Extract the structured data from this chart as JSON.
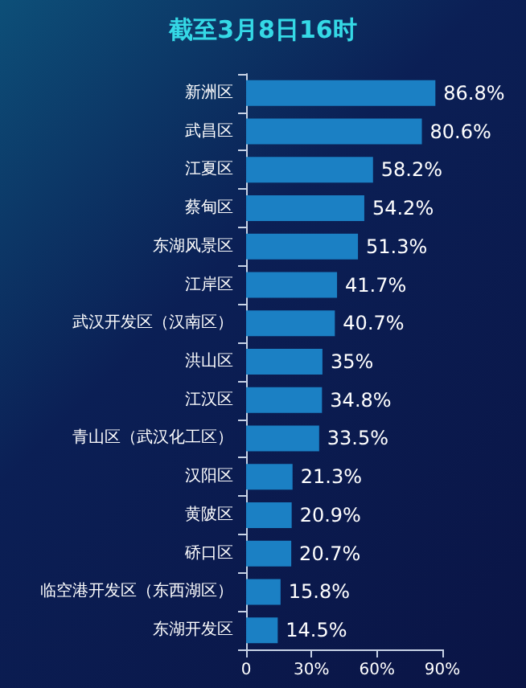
{
  "chart_data": {
    "type": "bar",
    "orientation": "horizontal",
    "title": "截至3月8日16时",
    "categories": [
      "新洲区",
      "武昌区",
      "江夏区",
      "蔡甸区",
      "东湖风景区",
      "江岸区",
      "武汉开发区（汉南区）",
      "洪山区",
      "江汉区",
      "青山区（武汉化工区）",
      "汉阳区",
      "黄陂区",
      "硚口区",
      "临空港开发区（东西湖区）",
      "东湖开发区"
    ],
    "values": [
      86.8,
      80.6,
      58.2,
      54.2,
      51.3,
      41.7,
      40.7,
      35,
      34.8,
      33.5,
      21.3,
      20.9,
      20.7,
      15.8,
      14.5
    ],
    "value_labels": [
      "86.8%",
      "80.6%",
      "58.2%",
      "54.2%",
      "51.3%",
      "41.7%",
      "40.7%",
      "35%",
      "34.8%",
      "33.5%",
      "21.3%",
      "20.9%",
      "20.7%",
      "15.8%",
      "14.5%"
    ],
    "color": "#1b80c4",
    "xlim": [
      0,
      90
    ],
    "xticks": [
      0,
      {
        "value": 30,
        "label": "30%"
      },
      {
        "value": 60,
        "label": "60%"
      },
      {
        "value": 90,
        "label": "90%"
      }
    ],
    "grid": false
  }
}
